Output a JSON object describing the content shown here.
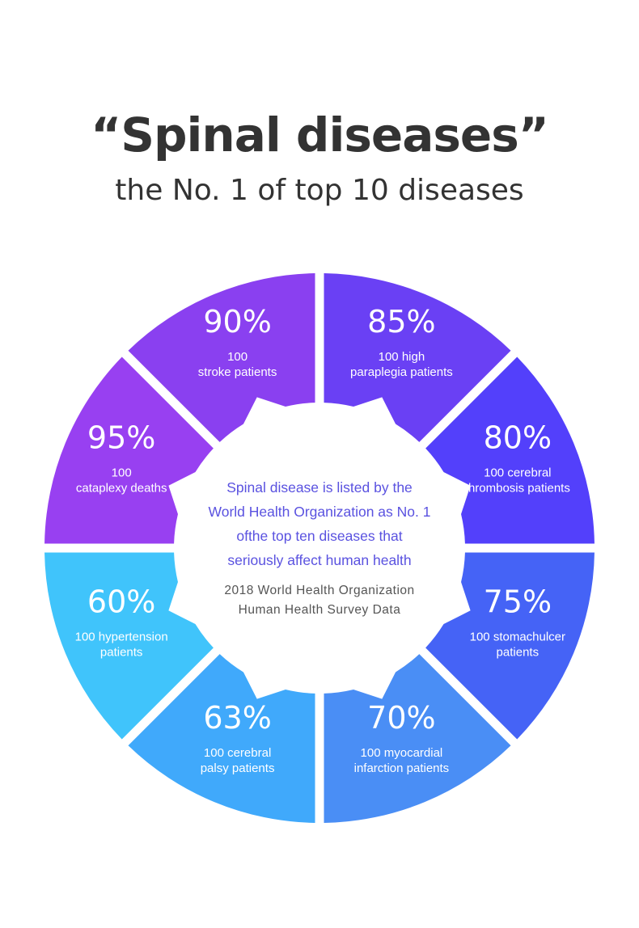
{
  "header": {
    "title": "“Spinal diseases”",
    "subtitle": "the No. 1 of top 10 diseases"
  },
  "center": {
    "lines": [
      "Spinal disease is listed by the",
      "World Health Organization as No. 1",
      "ofthe top ten diseases that",
      "seriously affect human health"
    ],
    "source_lines": [
      "2018 World Health Organization",
      "Human Health Survey Data"
    ]
  },
  "colors": {
    "title": "#333333",
    "center_text": "#5a52e0",
    "source_text": "#555555",
    "segment_text": "#ffffff"
  },
  "chart_data": {
    "type": "pie",
    "style": "donut",
    "unit": "%",
    "segments": [
      {
        "value": 85,
        "label": "85%",
        "caption": [
          "100 high",
          "paraplegia patients"
        ],
        "color": "#6a40f4"
      },
      {
        "value": 80,
        "label": "80%",
        "caption": [
          "100 cerebral",
          "thrombosis patients"
        ],
        "color": "#5340fb"
      },
      {
        "value": 75,
        "label": "75%",
        "caption": [
          "100 stomachulcer",
          "patients"
        ],
        "color": "#4563f6"
      },
      {
        "value": 70,
        "label": "70%",
        "caption": [
          "100 myocardial",
          "infarction patients"
        ],
        "color": "#4a8ef5"
      },
      {
        "value": 63,
        "label": "63%",
        "caption": [
          "100 cerebral",
          "palsy patients"
        ],
        "color": "#40a9fb"
      },
      {
        "value": 60,
        "label": "60%",
        "caption": [
          "100 hypertension",
          "patients"
        ],
        "color": "#40c4fb"
      },
      {
        "value": 95,
        "label": "95%",
        "caption": [
          "100",
          "cataplexy deaths"
        ],
        "color": "#9840f1"
      },
      {
        "value": 90,
        "label": "90%",
        "caption": [
          "100",
          "stroke patients"
        ],
        "color": "#8a40f0"
      }
    ]
  }
}
